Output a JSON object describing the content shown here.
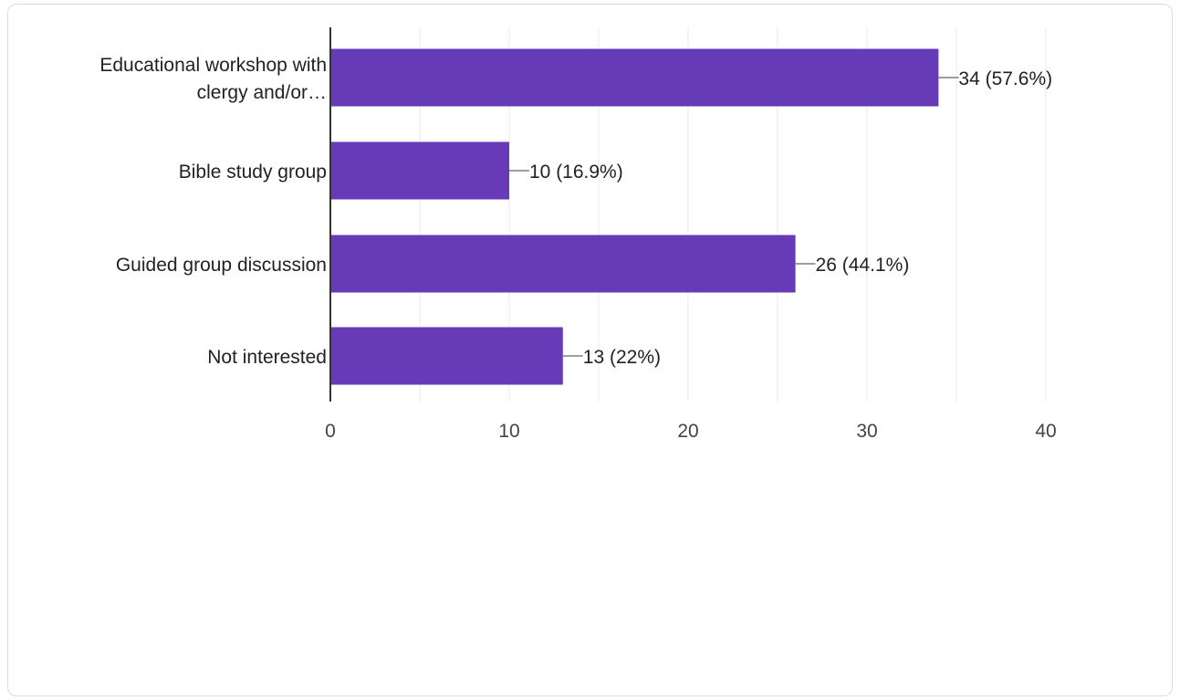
{
  "chart_data": {
    "type": "bar",
    "orientation": "horizontal",
    "categories": [
      [
        "Educational workshop with",
        "clergy and/or…"
      ],
      [
        "Bible study group"
      ],
      [
        "Guided group discussion"
      ],
      [
        "Not interested"
      ]
    ],
    "values": [
      34,
      10,
      26,
      13
    ],
    "value_labels": [
      "34 (57.6%)",
      "10 (16.9%)",
      "26 (44.1%)",
      "13 (22%)"
    ],
    "xlim": [
      0,
      40
    ],
    "x_ticks": [
      0,
      10,
      20,
      30,
      40
    ],
    "x_tick_labels": [
      "0",
      "10",
      "20",
      "30",
      "40"
    ],
    "grid": true,
    "title": "",
    "xlabel": "",
    "ylabel": "",
    "colors": {
      "bar": "#673ab7",
      "grid": "#ebebeb",
      "axis": "#333333",
      "leader": "#9e9e9e"
    }
  }
}
